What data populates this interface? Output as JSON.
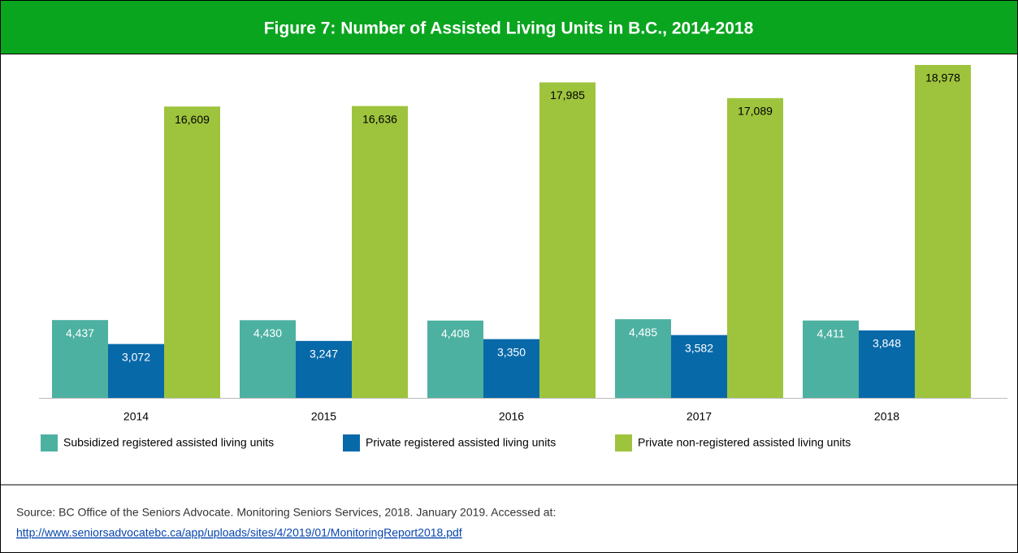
{
  "chart_data": {
    "type": "bar",
    "title": "Figure 7: Number of Assisted Living Units in B.C., 2014-2018",
    "categories": [
      "2014",
      "2015",
      "2016",
      "2017",
      "2018"
    ],
    "series": [
      {
        "name": "Subsidized registered assisted living units",
        "color": "#4db1a1",
        "values": [
          4437,
          4430,
          4408,
          4485,
          4411
        ],
        "value_labels": [
          "4,437",
          "4,430",
          "4,408",
          "4,485",
          "4,411"
        ],
        "label_color": "#ffffff"
      },
      {
        "name": "Private registered assisted living units",
        "color": "#0869a9",
        "values": [
          3072,
          3247,
          3350,
          3582,
          3848
        ],
        "value_labels": [
          "3,072",
          "3,247",
          "3,350",
          "3,582",
          "3,848"
        ],
        "label_color": "#ffffff"
      },
      {
        "name": "Private non-registered assisted living units",
        "color": "#9ec43d",
        "values": [
          16609,
          16636,
          17985,
          17089,
          18978
        ],
        "value_labels": [
          "16,609",
          "16,636",
          "17,985",
          "17,089",
          "18,978"
        ],
        "label_color": "#000000"
      }
    ],
    "legend": "bottom",
    "source": "Source: BC Office of the Seniors Advocate. Monitoring Seniors Services, 2018. January 2019. Accessed at:",
    "source_url": "http://www.seniorsadvocatebc.ca/app/uploads/sites/4/2019/01/MonitoringReport2018.pdf"
  }
}
